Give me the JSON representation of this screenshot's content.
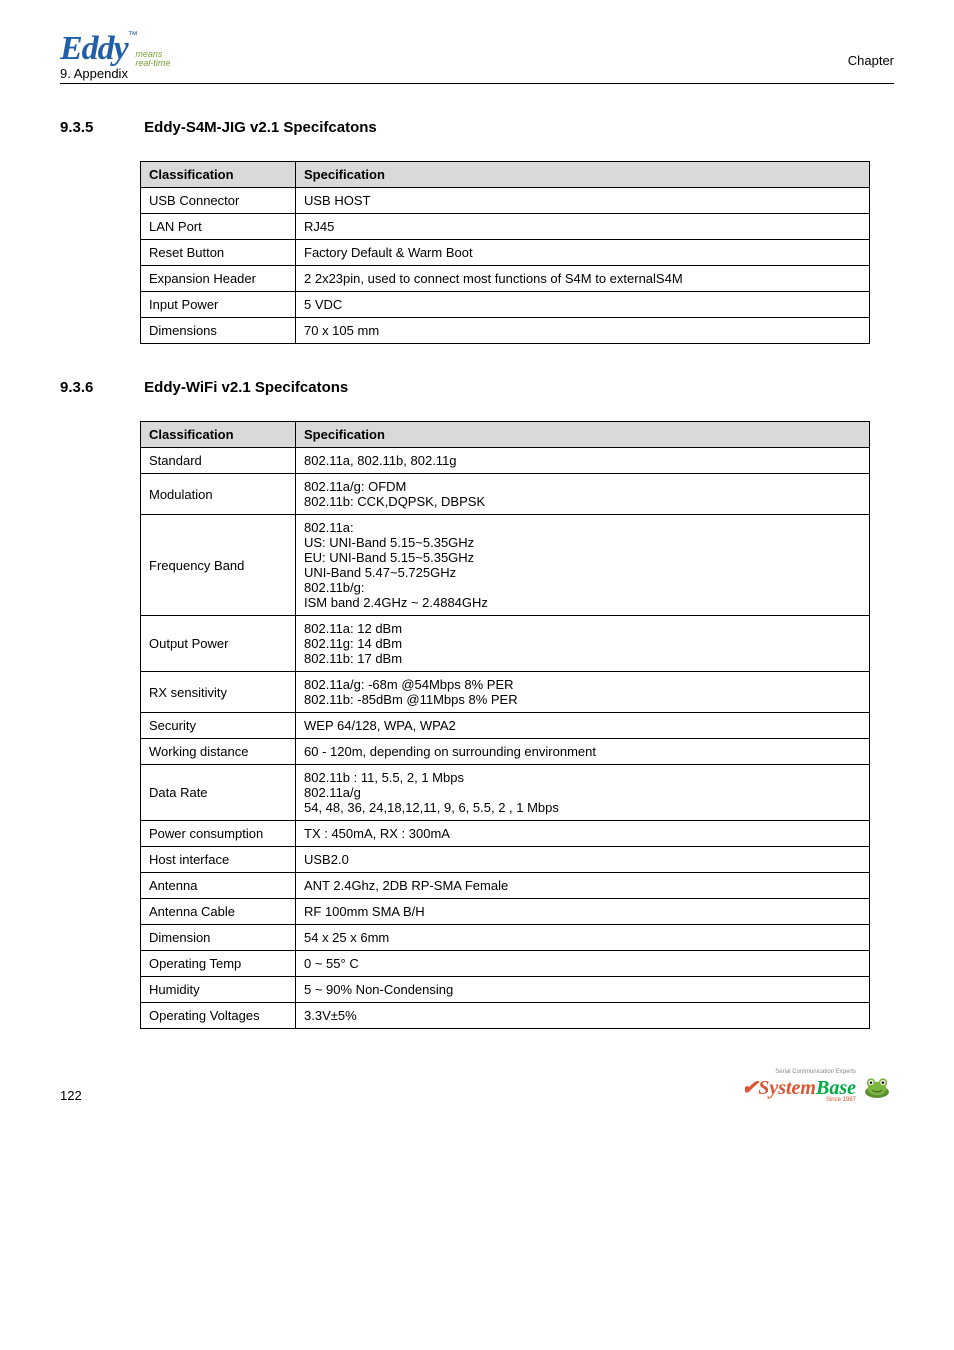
{
  "header": {
    "logo_main": "Eddy",
    "logo_tm": "™",
    "logo_sub1": "means",
    "logo_sub2": "real-time",
    "chapter": "Chapter",
    "appendix": "9. Appendix"
  },
  "section1": {
    "num": "9.3.5",
    "title": "Eddy-S4M-JIG   v2.1 Specifcatons",
    "col1": "Classification",
    "col2": "Specification",
    "rows": [
      {
        "c": "USB Connector",
        "s": "USB HOST"
      },
      {
        "c": "LAN Port",
        "s": "RJ45"
      },
      {
        "c": "Reset Button",
        "s": "Factory Default & Warm Boot"
      },
      {
        "c": "Expansion Header",
        "s": "2 2x23pin, used to connect most functions of S4M to externalS4M",
        "small": true
      },
      {
        "c": "Input Power",
        "s": "5 VDC"
      },
      {
        "c": "Dimensions",
        "s": "70 x 105 mm"
      }
    ]
  },
  "section2": {
    "num": "9.3.6",
    "title": "Eddy-WiFi   v2.1 Specifcatons",
    "col1": "Classification",
    "col2": "Specification",
    "rows": [
      {
        "c": "Standard",
        "s": "802.11a, 802.11b, 802.11g"
      },
      {
        "c": "Modulation",
        "s": "802.11a/g: OFDM\n802.11b: CCK,DQPSK, DBPSK"
      },
      {
        "c": "Frequency Band",
        "s": "802.11a:\nUS: UNI-Band 5.15~5.35GHz\nEU: UNI-Band 5.15~5.35GHz\nUNI-Band 5.47~5.725GHz\n802.11b/g:\nISM band 2.4GHz ~ 2.4884GHz"
      },
      {
        "c": "Output Power",
        "s": "802.11a: 12 dBm\n802.11g: 14 dBm\n802.11b: 17 dBm"
      },
      {
        "c": "RX sensitivity",
        "s": "802.11a/g: -68m @54Mbps 8% PER\n802.11b: -85dBm @11Mbps 8% PER"
      },
      {
        "c": "Security",
        "s": "WEP 64/128, WPA, WPA2"
      },
      {
        "c": "Working distance",
        "s": "60 - 120m, depending on surrounding environment"
      },
      {
        "c": "Data Rate",
        "s": "802.11b : 11, 5.5, 2, 1 Mbps\n802.11a/g\n54, 48, 36, 24,18,12,11, 9, 6, 5.5, 2 , 1 Mbps"
      },
      {
        "c": "Power consumption",
        "s": "TX : 450mA, RX : 300mA"
      },
      {
        "c": "Host interface",
        "s": "USB2.0"
      },
      {
        "c": "Antenna",
        "s": "ANT 2.4Ghz,   2DB RP-SMA Female"
      },
      {
        "c": "Antenna Cable",
        "s": "RF 100mm SMA B/H"
      },
      {
        "c": "Dimension",
        "s": "54 x 25 x 6mm"
      },
      {
        "c": "Operating Temp",
        "s": "0 ~ 55° C"
      },
      {
        "c": "Humidity",
        "s": "5 ~ 90% Non-Condensing"
      },
      {
        "c": "Operating Voltages",
        "s": "3.3V±5%"
      }
    ]
  },
  "footer": {
    "page": "122",
    "brand1": "System",
    "brand2": "Base",
    "tag": "Serial Communication Experts",
    "since": "Since 1987"
  }
}
